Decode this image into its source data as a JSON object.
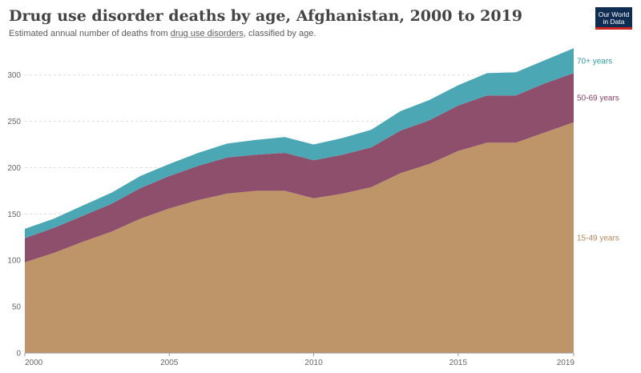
{
  "header": {
    "title": "Drug use disorder deaths by age, Afghanistan, 2000 to 2019",
    "subtitle_prefix": "Estimated annual number of deaths from ",
    "subtitle_link": "drug use disorders",
    "subtitle_suffix": ", classified by age."
  },
  "logo": {
    "line1": "Our World",
    "line2": "in Data",
    "bg_color": "#0f2d53",
    "accent_color": "#ce261e"
  },
  "chart_data": {
    "type": "area",
    "stacked": true,
    "x": [
      2000,
      2001,
      2002,
      2003,
      2004,
      2005,
      2006,
      2007,
      2008,
      2009,
      2010,
      2011,
      2012,
      2013,
      2014,
      2015,
      2016,
      2017,
      2018,
      2019
    ],
    "series": [
      {
        "name": "15-49 years",
        "color": "#be9469",
        "values": [
          98,
          108,
          120,
          131,
          145,
          156,
          165,
          172,
          175,
          175,
          167,
          172,
          179,
          194,
          204,
          218,
          227,
          227,
          238,
          249
        ]
      },
      {
        "name": "50-69 years",
        "color": "#8e4f6d",
        "values": [
          26,
          27,
          28,
          30,
          33,
          35,
          37,
          39,
          39,
          41,
          41,
          42,
          43,
          46,
          47,
          49,
          51,
          51,
          53,
          53
        ]
      },
      {
        "name": "70+ years",
        "color": "#4ba7b4",
        "values": [
          10,
          10,
          11,
          12,
          13,
          13,
          14,
          15,
          16,
          17,
          17,
          18,
          19,
          21,
          22,
          22,
          24,
          25,
          25,
          27
        ]
      }
    ],
    "ylim": [
      0,
      330
    ],
    "yticks": [
      0,
      50,
      100,
      150,
      200,
      250,
      300
    ],
    "xticks": [
      2000,
      2005,
      2010,
      2015,
      2019
    ],
    "grid": "horizontal dashed",
    "legend": "inline labels at right end of areas",
    "label_colors": {
      "15-49 years": "#b8875a",
      "50-69 years": "#8a3e62",
      "70+ years": "#2f9aa4"
    }
  }
}
